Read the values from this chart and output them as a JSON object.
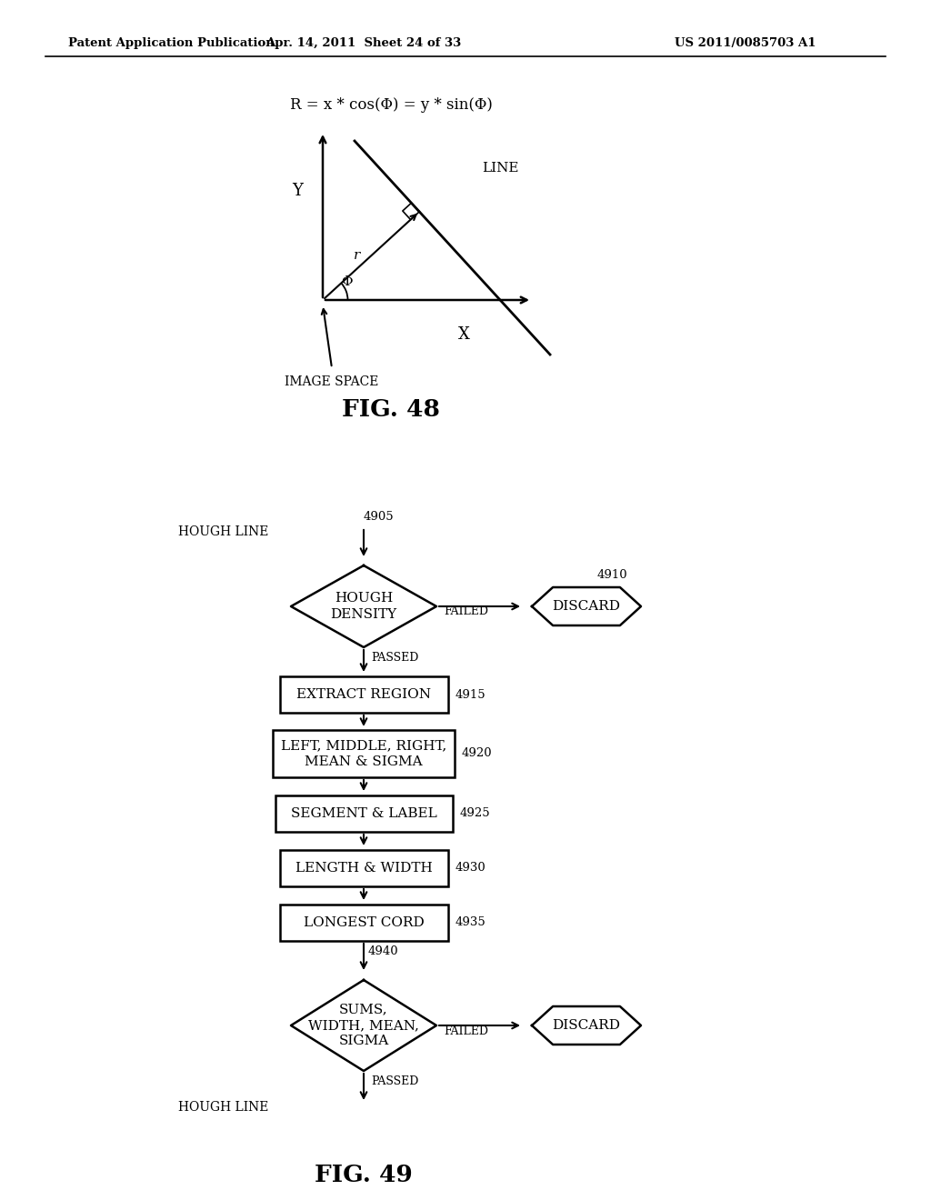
{
  "bg_color": "#ffffff",
  "header_left": "Patent Application Publication",
  "header_center": "Apr. 14, 2011  Sheet 24 of 33",
  "header_right": "US 2011/0085703 A1",
  "fig48_title": "R = x * cos(Φ) = y * sin(Φ)",
  "fig48_label": "FIG. 48",
  "fig48_image_space": "IMAGE SPACE",
  "fig48_x_label": "X",
  "fig48_y_label": "Y",
  "fig48_r_label": "r",
  "fig48_phi_label": "Φ",
  "fig48_line_label": "LINE",
  "fig49_label": "FIG. 49",
  "fig49_hough_line_top": "HOUGH LINE",
  "fig49_hough_line_bottom": "HOUGH LINE",
  "fig49_node_4905": "4905",
  "fig49_node_4910": "4910",
  "fig49_node_4915": "4915",
  "fig49_node_4920": "4920",
  "fig49_node_4925": "4925",
  "fig49_node_4930": "4930",
  "fig49_node_4935": "4935",
  "fig49_node_4940": "4940",
  "fig49_diamond1_text": "HOUGH\nDENSITY",
  "fig49_diamond2_text": "SUMS,\nWIDTH, MEAN,\nSIGMA",
  "fig49_discard1_text": "DISCARD",
  "fig49_discard2_text": "DISCARD",
  "fig49_box1_text": "EXTRACT REGION",
  "fig49_box2_text": "LEFT, MIDDLE, RIGHT,\nMEAN & SIGMA",
  "fig49_box3_text": "SEGMENT & LABEL",
  "fig49_box4_text": "LENGTH & WIDTH",
  "fig49_box5_text": "LONGEST CORD",
  "fig49_failed1": "FAILED",
  "fig49_failed2": "FAILED",
  "fig49_passed1": "PASSED",
  "fig49_passed2": "PASSED"
}
